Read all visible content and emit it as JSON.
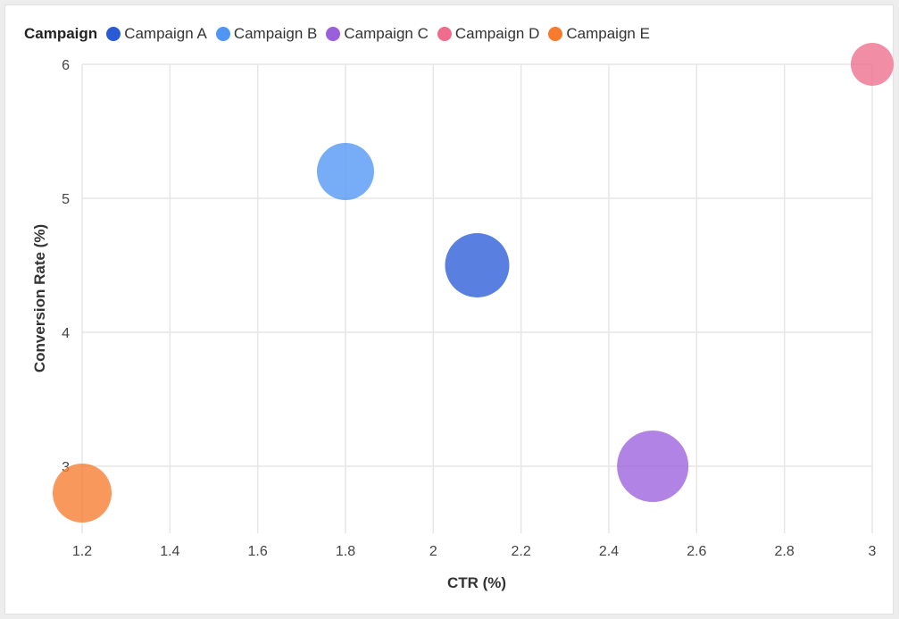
{
  "chart_data": {
    "type": "scatter",
    "title": "",
    "xlabel": "CTR (%)",
    "ylabel": "Conversion Rate (%)",
    "xlim": [
      1.2,
      3.0
    ],
    "ylim": [
      2.5,
      6.0
    ],
    "x_ticks": [
      "1.2",
      "1.4",
      "1.6",
      "1.8",
      "2",
      "2.2",
      "2.4",
      "2.6",
      "2.8",
      "3"
    ],
    "y_ticks": [
      "3",
      "4",
      "5",
      "6"
    ],
    "legend_title": "Campaign",
    "legend_position": "top-left",
    "grid": true,
    "series": [
      {
        "name": "Campaign A",
        "color": "#2a5bd7",
        "x": 2.1,
        "y": 4.5,
        "size": 36
      },
      {
        "name": "Campaign B",
        "color": "#4f96f4",
        "x": 1.8,
        "y": 5.2,
        "size": 32
      },
      {
        "name": "Campaign C",
        "color": "#9a60dc",
        "x": 2.5,
        "y": 3.0,
        "size": 40
      },
      {
        "name": "Campaign D",
        "color": "#ee6d8d",
        "x": 3.0,
        "y": 6.0,
        "size": 24
      },
      {
        "name": "Campaign E",
        "color": "#f77b2e",
        "x": 1.2,
        "y": 2.8,
        "size": 33
      }
    ]
  }
}
